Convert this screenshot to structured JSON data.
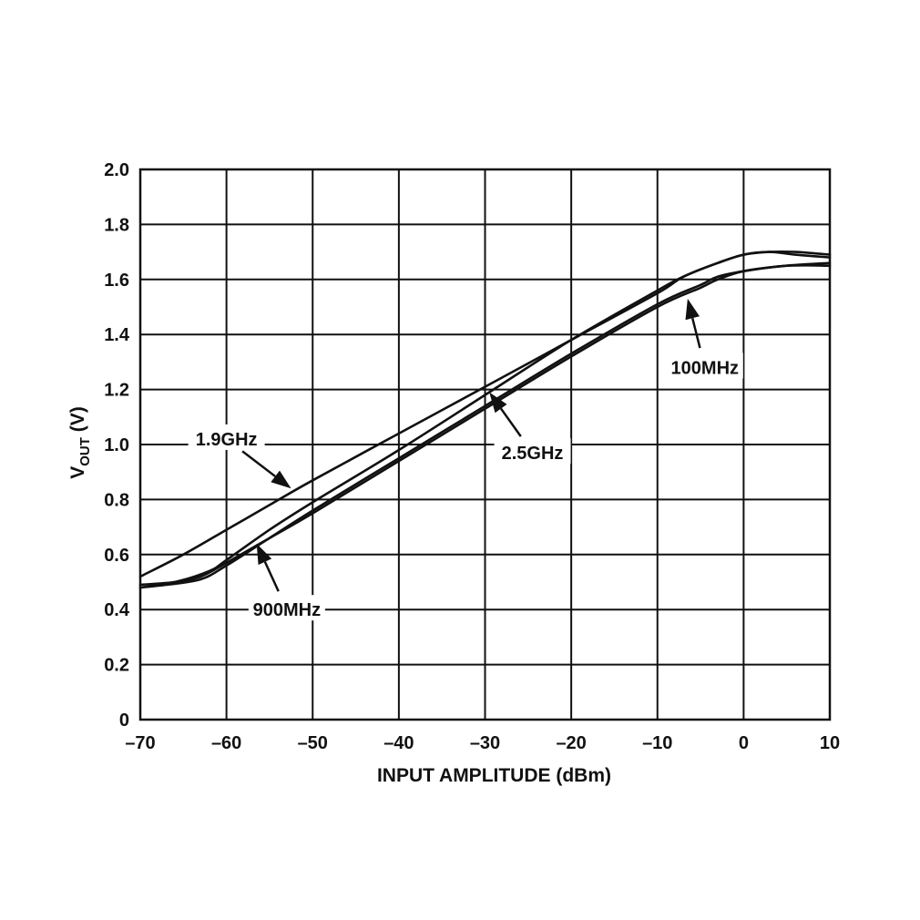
{
  "chart_data": {
    "type": "line",
    "title": "",
    "xlabel": "INPUT AMPLITUDE (dBm)",
    "ylabel_main": "V",
    "ylabel_sub": "OUT",
    "ylabel_unit": " (V)",
    "xlim": [
      -70,
      10
    ],
    "ylim": [
      0,
      2.0
    ],
    "x_ticks": [
      -70,
      -60,
      -50,
      -40,
      -30,
      -20,
      -10,
      0,
      10
    ],
    "x_tick_labels": [
      "–70",
      "–60",
      "–50",
      "–40",
      "–30",
      "–20",
      "–10",
      "0",
      "10"
    ],
    "y_ticks": [
      0,
      0.2,
      0.4,
      0.6,
      0.8,
      1.0,
      1.2,
      1.4,
      1.6,
      1.8,
      2.0
    ],
    "y_tick_labels": [
      "0",
      "0.2",
      "0.4",
      "0.6",
      "0.8",
      "1.0",
      "1.2",
      "1.4",
      "1.6",
      "1.8",
      "2.0"
    ],
    "grid": true,
    "series": [
      {
        "name": "100MHz",
        "points": [
          [
            -70,
            0.49
          ],
          [
            -66,
            0.5
          ],
          [
            -63,
            0.52
          ],
          [
            -60,
            0.57
          ],
          [
            -55,
            0.66
          ],
          [
            -50,
            0.75
          ],
          [
            -40,
            0.94
          ],
          [
            -30,
            1.13
          ],
          [
            -20,
            1.32
          ],
          [
            -10,
            1.5
          ],
          [
            -5,
            1.57
          ],
          [
            -3,
            1.6
          ],
          [
            0,
            1.63
          ],
          [
            5,
            1.65
          ],
          [
            10,
            1.66
          ]
        ]
      },
      {
        "name": "900MHz",
        "points": [
          [
            -70,
            0.48
          ],
          [
            -67,
            0.49
          ],
          [
            -63,
            0.51
          ],
          [
            -60,
            0.56
          ],
          [
            -55,
            0.66
          ],
          [
            -50,
            0.76
          ],
          [
            -40,
            0.95
          ],
          [
            -30,
            1.14
          ],
          [
            -20,
            1.33
          ],
          [
            -10,
            1.51
          ],
          [
            -5,
            1.58
          ],
          [
            -3,
            1.61
          ],
          [
            0,
            1.63
          ],
          [
            5,
            1.65
          ],
          [
            10,
            1.65
          ]
        ]
      },
      {
        "name": "1.9GHz",
        "points": [
          [
            -70,
            0.52
          ],
          [
            -65,
            0.6
          ],
          [
            -60,
            0.69
          ],
          [
            -55,
            0.78
          ],
          [
            -50,
            0.87
          ],
          [
            -40,
            1.04
          ],
          [
            -30,
            1.21
          ],
          [
            -20,
            1.38
          ],
          [
            -10,
            1.55
          ],
          [
            -7,
            1.61
          ],
          [
            -3,
            1.66
          ],
          [
            0,
            1.69
          ],
          [
            3,
            1.7
          ],
          [
            6,
            1.7
          ],
          [
            10,
            1.69
          ]
        ]
      },
      {
        "name": "2.5GHz",
        "points": [
          [
            -70,
            0.48
          ],
          [
            -66,
            0.5
          ],
          [
            -62,
            0.54
          ],
          [
            -60,
            0.58
          ],
          [
            -55,
            0.69
          ],
          [
            -50,
            0.79
          ],
          [
            -40,
            0.98
          ],
          [
            -30,
            1.18
          ],
          [
            -20,
            1.38
          ],
          [
            -10,
            1.56
          ],
          [
            -7,
            1.61
          ],
          [
            -3,
            1.66
          ],
          [
            0,
            1.69
          ],
          [
            3,
            1.7
          ],
          [
            6,
            1.69
          ],
          [
            10,
            1.68
          ]
        ]
      }
    ],
    "annotations": [
      {
        "text": "1.9GHz",
        "target_series": "1.9GHz",
        "target": [
          -52.5,
          0.84
        ],
        "label_at": [
          -60,
          1.02
        ]
      },
      {
        "text": "2.5GHz",
        "target_series": "2.5GHz",
        "target": [
          -29.5,
          1.19
        ],
        "label_at": [
          -24.5,
          0.97
        ]
      },
      {
        "text": "100MHz",
        "target_series": "100MHz",
        "target": [
          -6.5,
          1.53
        ],
        "label_at": [
          -4.5,
          1.28
        ]
      },
      {
        "text": "900MHz",
        "target_series": "900MHz",
        "target": [
          -56.5,
          0.64
        ],
        "label_at": [
          -53,
          0.4
        ]
      }
    ]
  }
}
